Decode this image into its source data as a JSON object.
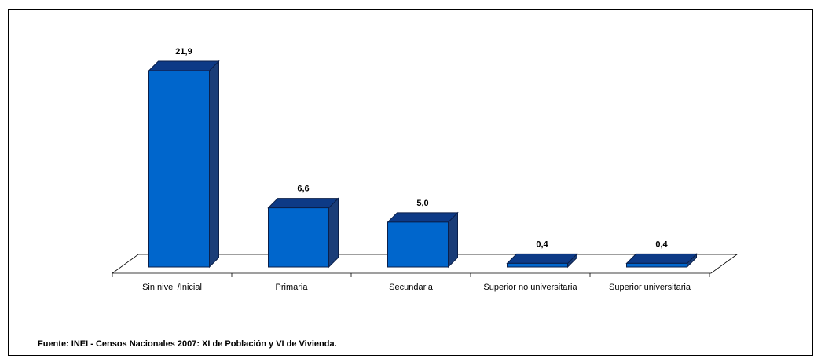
{
  "chart_data": {
    "type": "bar3d",
    "categories": [
      "Sin nivel /Inicial",
      "Primaria",
      "Secundaria",
      "Superior no universitaria",
      "Superior universitaria"
    ],
    "values": [
      21.9,
      6.6,
      5.0,
      0.4,
      0.4
    ],
    "value_labels": [
      "21,9",
      "6,6",
      "5,0",
      "0,4",
      "0,4"
    ],
    "color": "#0066cc",
    "source": "Fuente: INEI - Censos Nacionales 2007: XI de Población y VI de Vivienda."
  }
}
